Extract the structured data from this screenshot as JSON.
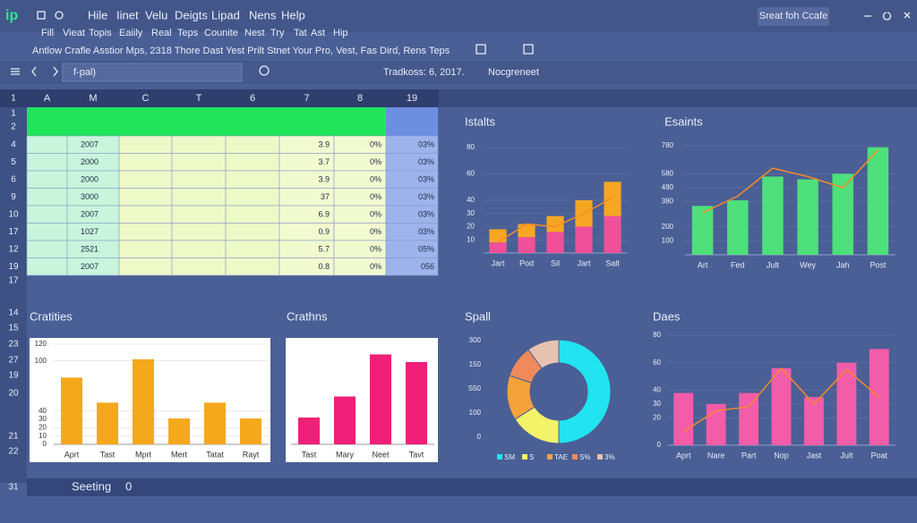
{
  "menu": {
    "logo": "ip",
    "items": [
      "Hile",
      "Iinet",
      "Velu",
      "Deigts",
      "Lipad",
      "Nens",
      "Help"
    ],
    "button": "Sreat foh Ccafe"
  },
  "toolbar": {
    "row1": [
      "Fill",
      "Vieat",
      "Topis",
      "Eaiily",
      "Real",
      "Teps",
      "Counite",
      "Nest",
      "Try",
      "Tat",
      "Ast",
      "Hip"
    ],
    "row2": "Antlow Crafle Asstior Mps, 2318 Thore Dast Yest Prilt Stnet Your Pro, Vest, Fas Dird, Rens Teps"
  },
  "formula_bar": {
    "cell": "f-pal)",
    "info": "Tradkoss: 6, 2017.",
    "sheet": "Nocgreneet"
  },
  "sheet": {
    "corner": "1",
    "columns": [
      "A",
      "M",
      "C",
      "T",
      "6",
      "7",
      "8",
      "19"
    ],
    "rows": [
      [
        "2007",
        "3.9",
        "0%",
        "03%"
      ],
      [
        "2000",
        "3.7",
        "0%",
        "03%"
      ],
      [
        "2000",
        "3.9",
        "0%",
        "03%"
      ],
      [
        "3000",
        "37",
        "0%",
        "03%"
      ],
      [
        "2007",
        "6.9",
        "0%",
        "03%"
      ],
      [
        "1027",
        "0.9",
        "0%",
        "03%"
      ],
      [
        "2521",
        "5.7",
        "0%",
        "05%"
      ],
      [
        "2007",
        "0.8",
        "0%",
        "056"
      ]
    ],
    "row_numbers_top": [
      "1",
      "2"
    ],
    "row_numbers_data": [
      "4",
      "5",
      "6",
      "9",
      "10",
      "17",
      "12",
      "19"
    ],
    "row_numbers_bottom": [
      "17",
      "14",
      "15",
      "23",
      "27",
      "19",
      "20",
      "21",
      "22"
    ]
  },
  "charts": [
    {
      "type": "bar",
      "stacked": true,
      "title": "Istalts",
      "categories": [
        "Jart",
        "Pod",
        "Sil",
        "Jart",
        "Salt"
      ],
      "ylim": [
        0,
        80
      ],
      "yticks": [
        10,
        20,
        30,
        40,
        60,
        80
      ],
      "series": [
        {
          "color": "#f0509a",
          "values": [
            8,
            12,
            16,
            20,
            28
          ]
        },
        {
          "color": "#f6a623",
          "values": [
            10,
            10,
            12,
            20,
            26
          ]
        }
      ],
      "line": {
        "color": "#f58a2a",
        "values": [
          8,
          22,
          20,
          30,
          42
        ]
      }
    },
    {
      "type": "bar",
      "title": "Esaints",
      "categories": [
        "Art",
        "Fed",
        "Jult",
        "Wey",
        "Jah",
        "Post"
      ],
      "ylim": [
        0,
        800
      ],
      "yticks": [
        100,
        200,
        380,
        480,
        580,
        780
      ],
      "series": [
        {
          "color": "#4ee07a",
          "values": [
            350,
            390,
            560,
            540,
            580,
            770
          ]
        }
      ],
      "line": {
        "color": "#f58a2a",
        "values": [
          300,
          420,
          620,
          560,
          480,
          750
        ]
      }
    },
    {
      "type": "bar",
      "panel": true,
      "title": "Cratities",
      "categories": [
        "Aprt",
        "Tast",
        "Mprt",
        "Mert",
        "Tatat",
        "Rayt"
      ],
      "ylim": [
        0,
        120
      ],
      "yticks": [
        0,
        10,
        20,
        30,
        40,
        100,
        120
      ],
      "series": [
        {
          "color": "#f5a81c",
          "values": [
            80,
            50,
            102,
            31,
            50,
            31
          ]
        }
      ]
    },
    {
      "type": "bar",
      "panel": true,
      "title": "Crathns",
      "categories": [
        "Tast",
        "Mary",
        "Neet",
        "Tavt"
      ],
      "ylim": [
        0,
        100
      ],
      "series": [
        {
          "color": "#ef1f78",
          "values": [
            28,
            50,
            94,
            86
          ]
        }
      ]
    },
    {
      "type": "pie",
      "title": "Spall",
      "side_labels": [
        "300",
        "150",
        "S50",
        "100",
        "0"
      ],
      "slices": [
        {
          "label": "SM",
          "color": "#22e3f0",
          "value": 50
        },
        {
          "label": "S",
          "color": "#f3f36a",
          "value": 16
        },
        {
          "label": "TAE",
          "color": "#f5a23a",
          "value": 14
        },
        {
          "label": "S%",
          "color": "#f08a5b",
          "value": 10
        },
        {
          "label": "3%",
          "color": "#e8c2b0",
          "value": 10
        }
      ]
    },
    {
      "type": "bar",
      "title": "Daes",
      "categories": [
        "Aprt",
        "Nare",
        "Part",
        "Nop",
        "Jast",
        "Jult",
        "Poat"
      ],
      "ylim": [
        0,
        80
      ],
      "yticks": [
        0,
        20,
        30,
        40,
        60,
        80
      ],
      "series": [
        {
          "color": "#f25ca8",
          "values": [
            38,
            30,
            38,
            56,
            35,
            60,
            70
          ]
        }
      ],
      "line": {
        "color": "#f58a2a",
        "values": [
          10,
          25,
          28,
          56,
          30,
          55,
          35
        ]
      }
    }
  ],
  "status": {
    "row": "31",
    "label": "Seeting",
    "value": "0"
  }
}
